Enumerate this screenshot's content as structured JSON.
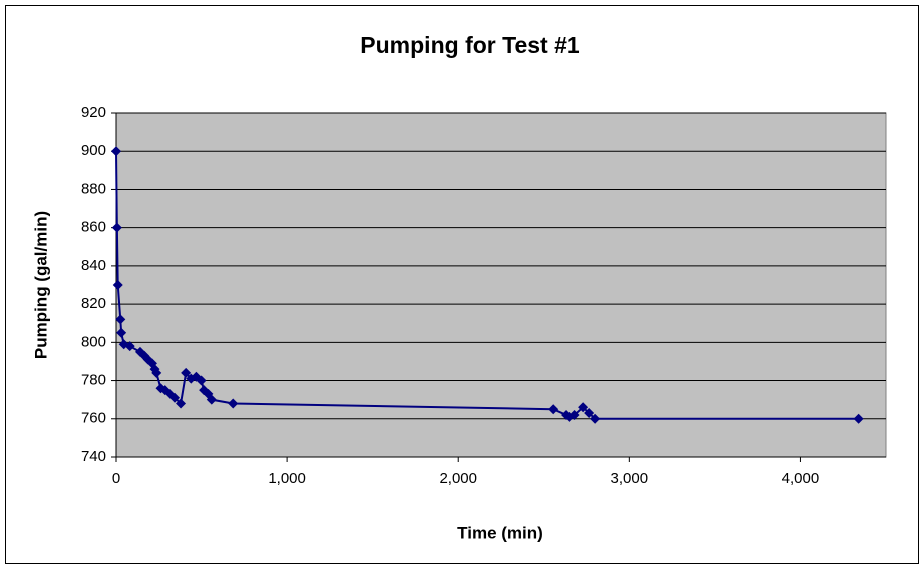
{
  "chart_data": {
    "type": "line",
    "title": "Pumping for Test #1",
    "x_label": "Time (min)",
    "y_label": "Pumping (gal/min)",
    "series": [
      {
        "name": "Pumping",
        "color": "#000080",
        "x": [
          0,
          5,
          10,
          25,
          30,
          45,
          80,
          140,
          165,
          185,
          210,
          225,
          235,
          260,
          285,
          315,
          345,
          380,
          410,
          440,
          470,
          500,
          515,
          540,
          560,
          685,
          2555,
          2630,
          2650,
          2680,
          2730,
          2765,
          2800,
          4340
        ],
        "values": [
          900,
          860,
          830,
          812,
          805,
          799,
          798,
          795,
          793,
          791,
          789,
          786,
          784,
          776,
          775,
          773,
          771,
          768,
          784,
          781,
          782,
          780,
          775,
          773,
          770,
          768,
          765,
          762,
          761,
          762,
          766,
          763,
          760,
          760
        ]
      }
    ],
    "xlim": [
      0,
      4500
    ],
    "xticks": [
      0,
      {
        "value": 1000,
        "label": "1,000"
      },
      {
        "value": 2000,
        "label": "2,000"
      },
      {
        "value": 3000,
        "label": "3,000"
      },
      {
        "value": 4000,
        "label": "4,000"
      }
    ],
    "ylim": [
      740,
      920
    ],
    "yticks": [
      740,
      760,
      780,
      800,
      820,
      840,
      860,
      880,
      900,
      920
    ],
    "grid": true,
    "plot_background": "#c0c0c0"
  }
}
